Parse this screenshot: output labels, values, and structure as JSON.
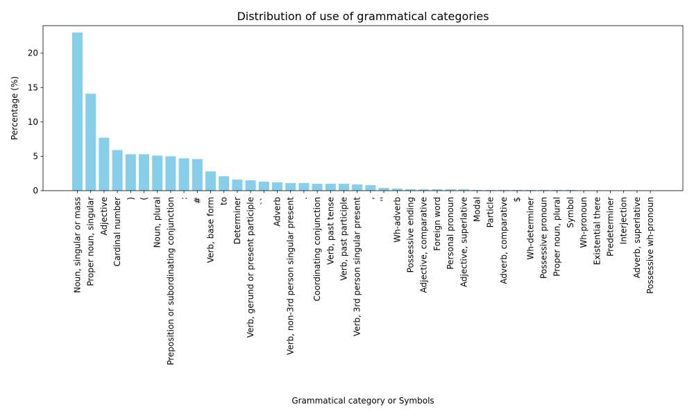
{
  "chart_data": {
    "type": "bar",
    "title": "Distribution of use of grammatical categories",
    "xlabel": "Grammatical category or Symbols",
    "ylabel": "Percentage (%)",
    "ylim": [
      0,
      24
    ],
    "yticks": [
      0,
      5,
      10,
      15,
      20
    ],
    "grid": false,
    "bar_color": "#87CEEB",
    "categories": [
      "Noun, singular or mass",
      "Proper noun, singular",
      "Adjective",
      "Cardinal number",
      ")",
      "(",
      "Noun, plural",
      "Preposition or subordinating conjunction",
      ":",
      "#",
      "Verb, base form",
      "to",
      "Determiner",
      "Verb, gerund or present participle",
      "``",
      "Adverb",
      "Verb, non-3rd person singular present",
      ".",
      "Coordinating conjunction",
      "Verb, past tense",
      "Verb, past participle",
      "Verb, 3rd person singular present",
      ",",
      "''",
      "Wh-adverb",
      "Possessive ending",
      "Adjective, comparative",
      "Foreign word",
      "Personal pronoun",
      "Adjective, superlative",
      "Modal",
      "Particle",
      "Adverb, comparative",
      "$",
      "Wh-determiner",
      "Possessive pronoun",
      "Proper noun, plural",
      "Symbol",
      "Wh-pronoun",
      "Existential there",
      "Predeterminer",
      "Interjection",
      "Adverb, superlative",
      "Possessive wh-pronoun"
    ],
    "values": [
      23.0,
      14.1,
      7.7,
      5.9,
      5.3,
      5.3,
      5.1,
      5.0,
      4.7,
      4.6,
      2.8,
      2.1,
      1.6,
      1.5,
      1.3,
      1.2,
      1.1,
      1.1,
      1.0,
      1.0,
      1.0,
      0.9,
      0.8,
      0.4,
      0.3,
      0.2,
      0.2,
      0.2,
      0.2,
      0.2,
      0.1,
      0.1,
      0.1,
      0.1,
      0.1,
      0.1,
      0.1,
      0.1,
      0.05,
      0.05,
      0.03,
      0.02,
      0.02,
      0.01
    ]
  }
}
